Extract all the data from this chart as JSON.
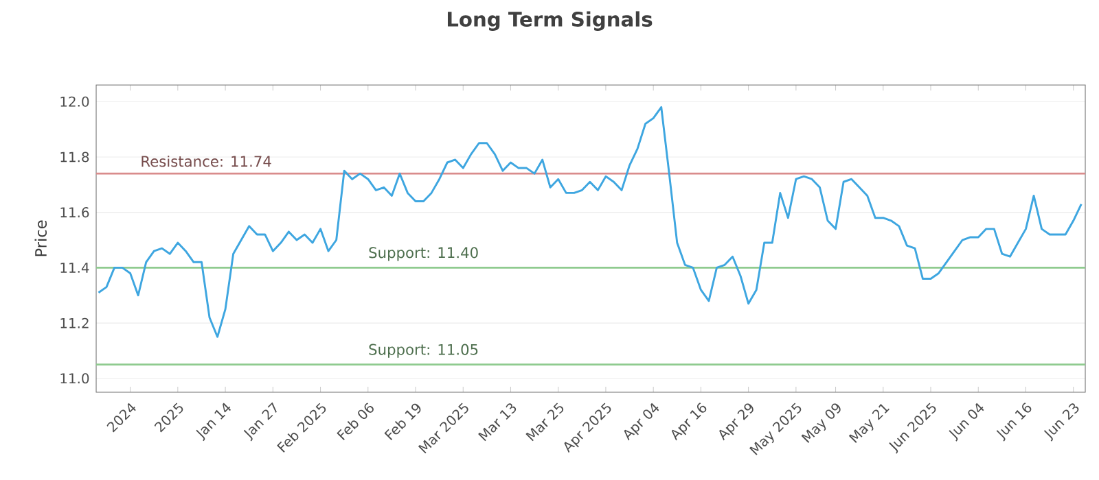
{
  "chart_data": {
    "type": "line",
    "title": "Long Term Signals",
    "ylabel": "Price",
    "categories": [
      null,
      null,
      null,
      null,
      "2024",
      null,
      null,
      null,
      null,
      null,
      "2025",
      null,
      null,
      null,
      null,
      null,
      "Jan 14",
      null,
      null,
      null,
      null,
      null,
      "Jan 27",
      null,
      null,
      null,
      null,
      null,
      "Feb 2025",
      null,
      null,
      null,
      null,
      null,
      "Feb 06",
      null,
      null,
      null,
      null,
      null,
      "Feb 19",
      null,
      null,
      null,
      null,
      null,
      "Mar 2025",
      null,
      null,
      null,
      null,
      null,
      "Mar 13",
      null,
      null,
      null,
      null,
      null,
      "Mar 25",
      null,
      null,
      null,
      null,
      null,
      "Apr 2025",
      null,
      null,
      null,
      null,
      null,
      "Apr 04",
      null,
      null,
      null,
      null,
      null,
      "Apr 16",
      null,
      null,
      null,
      null,
      null,
      "Apr 29",
      null,
      null,
      null,
      null,
      null,
      "May 2025",
      null,
      null,
      null,
      null,
      "May 09",
      null,
      null,
      null,
      null,
      null,
      "May 21",
      null,
      null,
      null,
      null,
      null,
      "Jun 2025",
      null,
      null,
      null,
      null,
      null,
      "Jun 04",
      null,
      null,
      null,
      null,
      null,
      "Jun 16",
      null,
      null,
      null,
      null,
      null,
      "Jun 23",
      null
    ],
    "series": [
      {
        "color": "#3ea6e0",
        "values": [
          11.31,
          11.33,
          11.4,
          11.4,
          11.38,
          11.3,
          11.42,
          11.46,
          11.47,
          11.45,
          11.49,
          11.46,
          11.42,
          11.42,
          11.22,
          11.15,
          11.25,
          11.45,
          11.5,
          11.55,
          11.52,
          11.52,
          11.46,
          11.49,
          11.53,
          11.5,
          11.52,
          11.49,
          11.54,
          11.46,
          11.5,
          11.75,
          11.72,
          11.74,
          11.72,
          11.68,
          11.69,
          11.66,
          11.74,
          11.67,
          11.64,
          11.64,
          11.67,
          11.72,
          11.78,
          11.79,
          11.76,
          11.81,
          11.85,
          11.85,
          11.81,
          11.75,
          11.78,
          11.76,
          11.76,
          11.74,
          11.79,
          11.69,
          11.72,
          11.67,
          11.67,
          11.68,
          11.71,
          11.68,
          11.73,
          11.71,
          11.68,
          11.77,
          11.83,
          11.92,
          11.94,
          11.98,
          11.74,
          11.49,
          11.41,
          11.4,
          11.32,
          11.28,
          11.4,
          11.41,
          11.44,
          11.37,
          11.27,
          11.32,
          11.49,
          11.49,
          11.67,
          11.58,
          11.72,
          11.73,
          11.72,
          11.69,
          11.57,
          11.54,
          11.71,
          11.72,
          11.69,
          11.66,
          11.58,
          11.58,
          11.57,
          11.55,
          11.48,
          11.47,
          11.36,
          11.36,
          11.38,
          11.42,
          11.46,
          11.5,
          11.51,
          11.51,
          11.54,
          11.54,
          11.45,
          11.44,
          11.49,
          11.54,
          11.66,
          11.54,
          11.52,
          11.52,
          11.52,
          11.57,
          11.63
        ]
      }
    ],
    "ylim": [
      10.95,
      12.06
    ],
    "yticks": [
      {
        "value": 11.0,
        "label": "11.0"
      },
      {
        "value": 11.2,
        "label": "11.2"
      },
      {
        "value": 11.4,
        "label": "11.4"
      },
      {
        "value": 11.6,
        "label": "11.6"
      },
      {
        "value": 11.8,
        "label": "11.8"
      },
      {
        "value": 12.0,
        "label": "12.0"
      }
    ],
    "grid": "y",
    "marker": "none",
    "line_style": "solid",
    "ref_lines": [
      {
        "axis": "y",
        "value": 11.74,
        "label": "Resistance: 11.74",
        "color": "#d98c8c"
      },
      {
        "axis": "y",
        "value": 11.4,
        "label": "Support: 11.40",
        "color": "#8fcb8f"
      },
      {
        "axis": "y",
        "value": 11.05,
        "label": "Support: 11.05",
        "color": "#8fcb8f"
      }
    ]
  }
}
